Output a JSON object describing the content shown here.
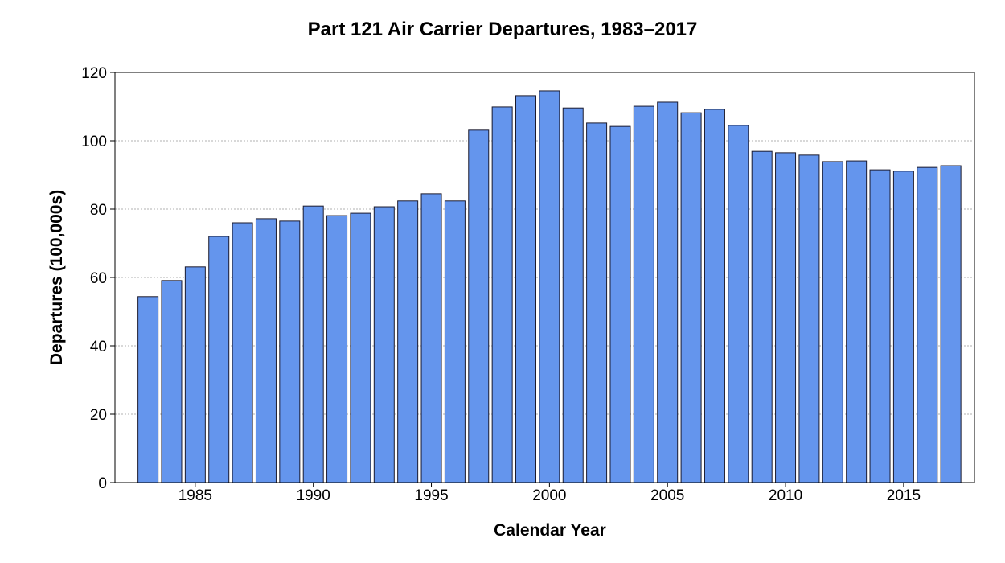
{
  "chart_data": {
    "type": "bar",
    "title": "Part 121 Air Carrier Departures, 1983–2017",
    "xlabel": "Calendar Year",
    "ylabel": "Departures (100,000s)",
    "categories": [
      1983,
      1984,
      1985,
      1986,
      1987,
      1988,
      1989,
      1990,
      1991,
      1992,
      1993,
      1994,
      1995,
      1996,
      1997,
      1998,
      1999,
      2000,
      2001,
      2002,
      2003,
      2004,
      2005,
      2006,
      2007,
      2008,
      2009,
      2010,
      2011,
      2012,
      2013,
      2014,
      2015,
      2016,
      2017
    ],
    "values": [
      54.4,
      59.1,
      63.1,
      72.0,
      76.0,
      77.2,
      76.5,
      80.9,
      78.1,
      78.8,
      80.7,
      82.4,
      84.5,
      82.4,
      103.1,
      109.9,
      113.2,
      114.6,
      109.6,
      105.2,
      104.2,
      110.1,
      111.3,
      108.2,
      109.2,
      104.5,
      96.9,
      96.5,
      95.8,
      93.9,
      94.1,
      91.5,
      91.1,
      92.2,
      92.7
    ],
    "ylim": [
      0,
      120
    ],
    "yticks": [
      "0",
      "20",
      "40",
      "60",
      "80",
      "100",
      "120"
    ],
    "xticks": [
      "1985",
      "1990",
      "1995",
      "2000",
      "2005",
      "2010",
      "2015"
    ],
    "grid": "horizontal dashed",
    "bar_color": "#6495ED",
    "bar_edge_color": "#1a1a2e"
  }
}
